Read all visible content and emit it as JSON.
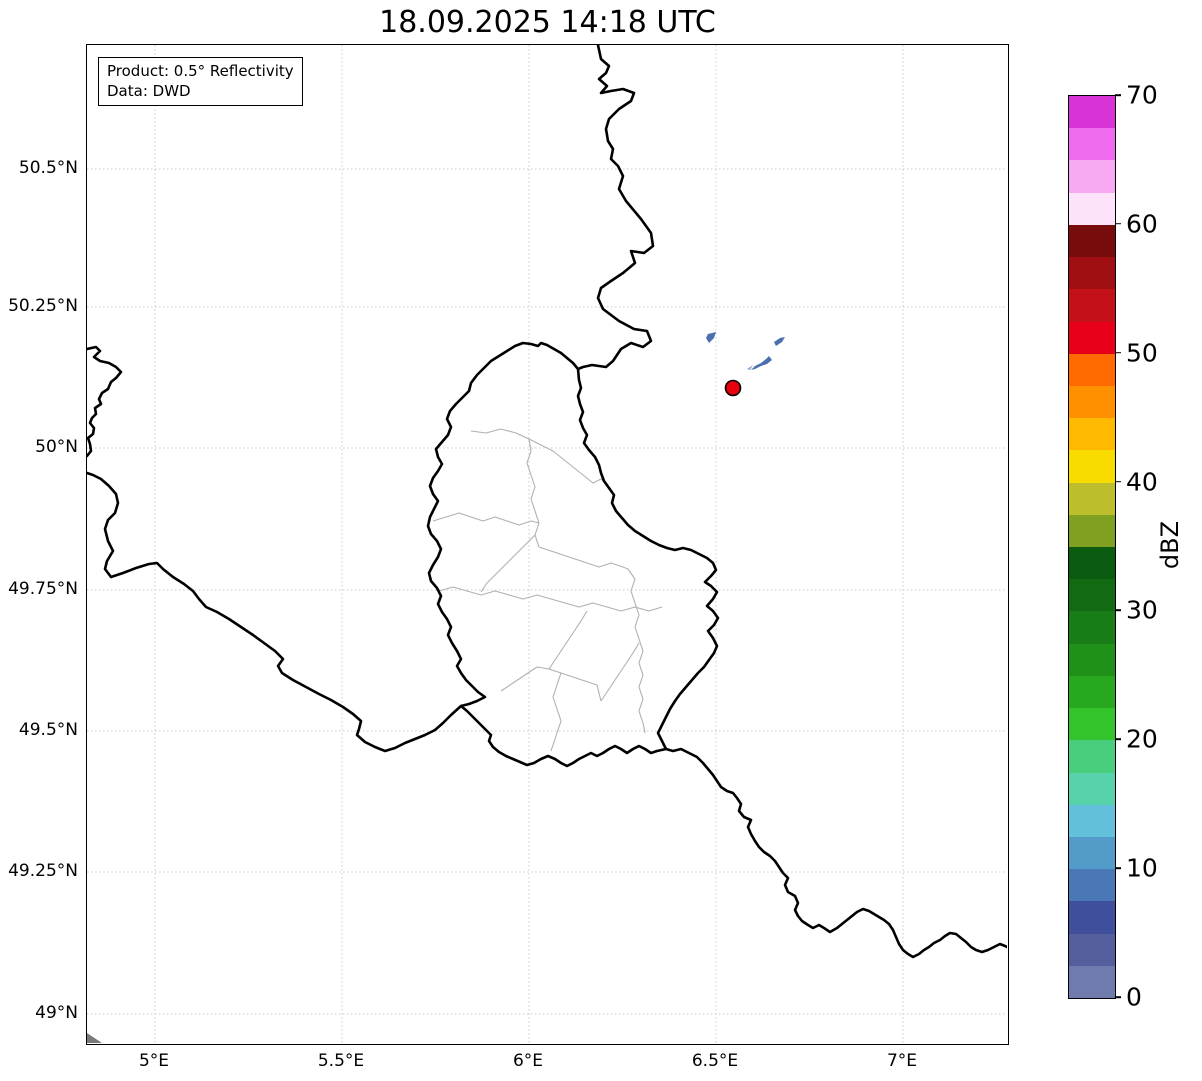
{
  "title": "18.09.2025 14:18 UTC",
  "annotation": {
    "line1": "Product: 0.5° Reflectivity",
    "line2": "Data: DWD"
  },
  "map": {
    "x_tick_labels": [
      "5°E",
      "5.5°E",
      "6°E",
      "6.5°E",
      "7°E"
    ],
    "y_tick_labels": [
      "50.5°N",
      "50.25°N",
      "50°N",
      "49.75°N",
      "49.5°N",
      "49.25°N",
      "49°N"
    ]
  },
  "colorbar": {
    "label": "dBZ",
    "tick_labels": [
      "70",
      "60",
      "50",
      "40",
      "30",
      "20",
      "10",
      "0"
    ],
    "segment_colors_top_to_bottom": [
      "#d733d7",
      "#ef6cef",
      "#f8a9f4",
      "#fce3fa",
      "#780c0c",
      "#a00f12",
      "#c41019",
      "#e8001a",
      "#ff6b00",
      "#ff9000",
      "#ffb900",
      "#f8dc00",
      "#bcbe2c",
      "#7fa021",
      "#0b5c10",
      "#126b13",
      "#187d17",
      "#1f9118",
      "#28a81e",
      "#33c32a",
      "#49ce7e",
      "#57d2ab",
      "#63c0da",
      "#539bc8",
      "#4a77b6",
      "#3f4f9b",
      "#555f9e",
      "#6f7bac"
    ]
  },
  "radar": {
    "site_marker_color": "#e8000d",
    "site_marker_edge": "#000000",
    "echo_color": "#4a70ad",
    "echo_color_light": "#8fa8cc"
  },
  "map_colors": {
    "country_border": "#000000",
    "admin_border": "#b0b0b0",
    "gridline": "#c9c9c9",
    "background": "#ffffff",
    "range_edge_gray": "#7a7a7a"
  },
  "chart_data": {
    "type": "map",
    "title": "18.09.2025 14:18 UTC",
    "region": "Luxembourg / Belgium / Germany / France border area",
    "lon_ticks_deg_e": [
      5,
      5.5,
      6,
      6.5,
      7
    ],
    "lat_ticks_deg_n": [
      50.5,
      50.25,
      50,
      49.75,
      49.5,
      49.25,
      49
    ],
    "colorbar": {
      "label": "dBZ",
      "min": 0,
      "max": 70,
      "tick_values": [
        0,
        10,
        20,
        30,
        40,
        50,
        60,
        70
      ],
      "segments": 28
    },
    "radar_site": {
      "lon_deg_e": 6.53,
      "lat_deg_n": 50.11,
      "marker": "red filled circle with black edge"
    },
    "echo_cells": [
      {
        "lon_deg_e": 6.48,
        "lat_deg_n": 50.19,
        "approx_dbz": 7
      },
      {
        "lon_deg_e": 6.66,
        "lat_deg_n": 50.19,
        "approx_dbz": 7
      },
      {
        "lon_deg_e": 6.61,
        "lat_deg_n": 50.13,
        "approx_dbz": 7
      }
    ],
    "annotation": "Product: 0.5° Reflectivity — Data: DWD",
    "grid": "dotted lat/lon graticule",
    "legend_position": "colorbar right"
  }
}
